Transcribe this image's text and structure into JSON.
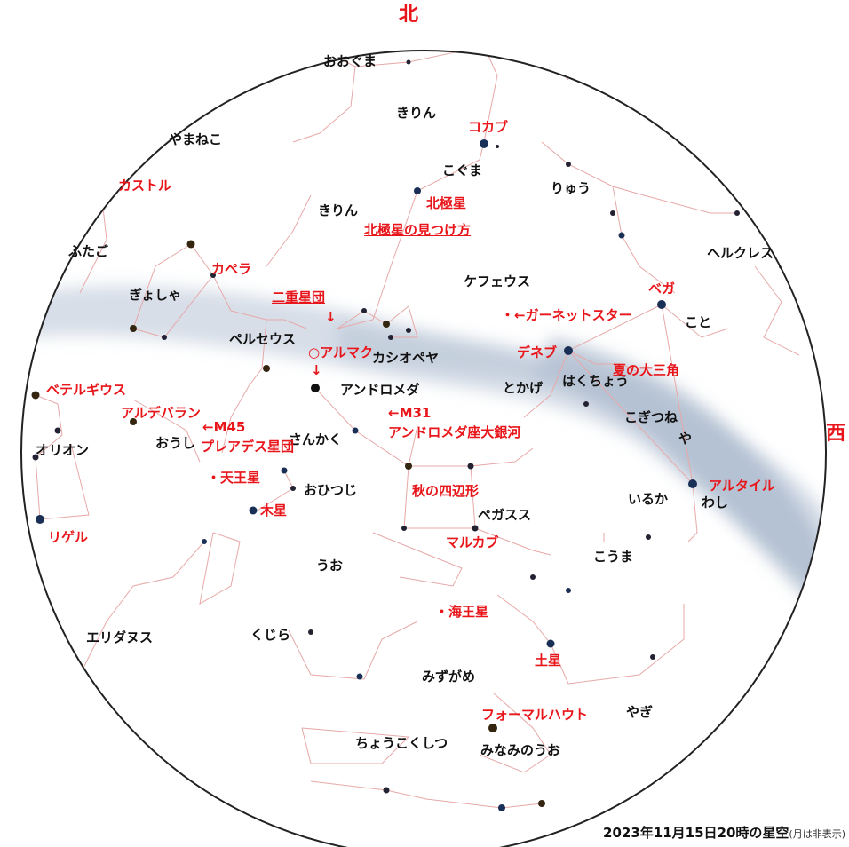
{
  "directions": {
    "north": "北",
    "west": "西"
  },
  "caption": {
    "date": "2023年11月15日20時の星空",
    "note": "(月は非表示)"
  },
  "constellations": {
    "ooguma": "おおぐま",
    "kirin_top": "きりん",
    "yamaneko": "やまねこ",
    "koguma": "こぐま",
    "ryuu": "りゅう",
    "kirin": "きりん",
    "kastoru_c": "ふたご",
    "herukuresu": "ヘルクレス",
    "gyosha": "ぎょしゃ",
    "kefeusu": "ケフェウス",
    "koto": "こと",
    "peruseusu": "ペルセウス",
    "kashiopeia": "カシオペヤ",
    "andoromeda": "アンドロメダ",
    "tokage": "とかげ",
    "hakuchou": "はくちょう",
    "kogitsune": "こぎつね",
    "ya": "や",
    "orion": "オリオン",
    "oushi": "おうし",
    "sankaku": "さんかく",
    "ohitsuji": "おひつじ",
    "iruka": "いるか",
    "washi": "わし",
    "pegasusu": "ペガスス",
    "uo": "うお",
    "kouma": "こうま",
    "eridanusu": "エリダヌス",
    "kujira": "くじら",
    "mizugame": "みずがめ",
    "yagi": "やぎ",
    "choukokushitsu": "ちょうこくしつ",
    "minaminouo": "みなみのうお"
  },
  "objects": {
    "kokabu": "コカブ",
    "kasutoru": "カストル",
    "hokkyokusei": "北極星",
    "hokkyokusei_link": "北極星の見つけ方",
    "kapera": "カペラ",
    "bega": "ベガ",
    "nijuuseidan": "二重星団",
    "nijuuseidan_arrow": "↓",
    "garnet": "・←ガーネットスター",
    "aruma": "○アルマク",
    "aruma_arrow": "↓",
    "deneb": "デネブ",
    "natsu": "夏の大三角",
    "beteru": "ベテルギウス",
    "arudebaran": "アルデバラン",
    "m45": "←M45",
    "pureadesu": "プレアデス星団",
    "m31": "←M31",
    "andoromeda_ginga": "アンドロメダ座大銀河",
    "tennousei": "・天王星",
    "aki": "秋の四辺形",
    "mokusei": "木星",
    "arutairu": "アルタイル",
    "rigeru": "リゲル",
    "marukabu": "マルカブ",
    "kaiousei": "・海王星",
    "dosei": "土星",
    "fomaru": "フォーマルハウト"
  },
  "colors": {
    "red_label": "#e8161b",
    "black_label": "#111111",
    "constellation_line": "#e7a8a8",
    "horizon": "#222222"
  }
}
